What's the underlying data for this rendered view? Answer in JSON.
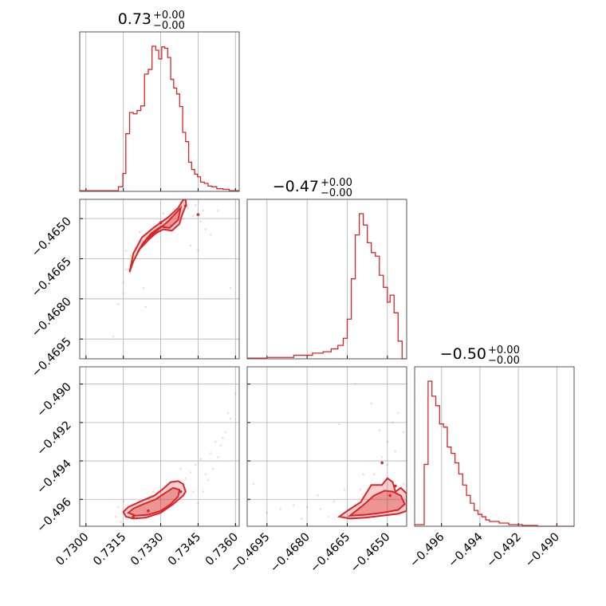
{
  "chart_data": {
    "type": "corner",
    "color": "#d62728",
    "parameters": [
      {
        "title": {
          "value": "0.73",
          "plus": "+0.00",
          "minus": "−0.00"
        },
        "range": [
          0.72975,
          0.73615
        ],
        "ticks": [
          0.73,
          0.7315,
          0.733,
          0.7345,
          0.736
        ],
        "tick_labels": [
          "0.7300",
          "0.7315",
          "0.7330",
          "0.7345",
          "0.7360"
        ]
      },
      {
        "title": {
          "value": "−0.47",
          "plus": "+0.00",
          "minus": "−0.00"
        },
        "range": [
          -0.47024,
          -0.46428
        ],
        "ticks": [
          -0.4695,
          -0.468,
          -0.4665,
          -0.465
        ],
        "tick_labels": [
          "−0.4695",
          "−0.4680",
          "−0.4665",
          "−0.4650"
        ]
      },
      {
        "title": {
          "value": "−0.50",
          "plus": "+0.00",
          "minus": "−0.00"
        },
        "range": [
          -0.4974,
          -0.4891
        ],
        "ticks": [
          -0.496,
          -0.494,
          -0.492,
          -0.49
        ],
        "tick_labels": [
          "−0.496",
          "−0.494",
          "−0.492",
          "−0.490"
        ]
      }
    ],
    "histograms": [
      {
        "param": 0,
        "edges": [
          0.72975,
          0.7313,
          0.73148,
          0.7316,
          0.73175,
          0.7319,
          0.73205,
          0.7322,
          0.73235,
          0.7325,
          0.73265,
          0.7328,
          0.73292,
          0.73304,
          0.73316,
          0.73328,
          0.7334,
          0.73352,
          0.73364,
          0.73376,
          0.73388,
          0.734,
          0.73412,
          0.73424,
          0.73436,
          0.73448,
          0.7346,
          0.73475,
          0.7349,
          0.73505,
          0.73525,
          0.7355,
          0.73575,
          0.73615
        ],
        "counts": [
          1,
          7,
          27,
          87,
          119,
          117,
          122,
          129,
          177,
          184,
          219,
          213,
          200,
          218,
          216,
          202,
          169,
          156,
          147,
          128,
          89,
          75,
          44,
          33,
          26,
          22,
          14,
          12,
          8,
          7,
          4,
          3,
          1
        ]
      },
      {
        "param": 1,
        "edges": [
          -0.47024,
          -0.4695,
          -0.4685,
          -0.4678,
          -0.4674,
          -0.4671,
          -0.46685,
          -0.46665,
          -0.4665,
          -0.46635,
          -0.4662,
          -0.46605,
          -0.4659,
          -0.46575,
          -0.4656,
          -0.46545,
          -0.4653,
          -0.46515,
          -0.465,
          -0.4649,
          -0.46475,
          -0.4646,
          -0.46445,
          -0.46428
        ],
        "counts": [
          1,
          2,
          5,
          8,
          10,
          14,
          19,
          29,
          56,
          113,
          175,
          205,
          189,
          164,
          150,
          145,
          118,
          101,
          80,
          90,
          65,
          25,
          0
        ]
      },
      {
        "param": 2,
        "edges": [
          -0.4974,
          -0.4969,
          -0.4967,
          -0.4965,
          -0.4963,
          -0.4961,
          -0.4959,
          -0.4957,
          -0.4955,
          -0.4953,
          -0.4951,
          -0.4949,
          -0.4947,
          -0.4945,
          -0.4943,
          -0.4941,
          -0.4939,
          -0.4937,
          -0.4935,
          -0.493,
          -0.4925,
          -0.4918,
          -0.491,
          -0.4891
        ],
        "counts": [
          2,
          78,
          183,
          164,
          152,
          129,
          125,
          100,
          92,
          80,
          66,
          52,
          39,
          29,
          20,
          15,
          12,
          8,
          6,
          4,
          2,
          1,
          0
        ]
      }
    ],
    "pairs": [
      {
        "x_param": 0,
        "y_param": 1,
        "contours_outer": [
          [
            [
              0.73175,
              -0.467
            ],
            [
              0.7319,
              -0.4663
            ],
            [
              0.73225,
              -0.4657
            ],
            [
              0.7327,
              -0.46535
            ],
            [
              0.7333,
              -0.46495
            ],
            [
              0.7337,
              -0.4646
            ],
            [
              0.7339,
              -0.4643
            ],
            [
              0.734,
              -0.46428
            ],
            [
              0.73402,
              -0.46448
            ],
            [
              0.73385,
              -0.46488
            ],
            [
              0.73375,
              -0.4652
            ],
            [
              0.73345,
              -0.46545
            ],
            [
              0.7331,
              -0.4654
            ],
            [
              0.7328,
              -0.46555
            ],
            [
              0.7325,
              -0.4658
            ],
            [
              0.73215,
              -0.46615
            ],
            [
              0.7319,
              -0.4666
            ],
            [
              0.73175,
              -0.467
            ]
          ]
        ],
        "contours_inner": [
          [
            [
              0.73208,
              -0.46625
            ],
            [
              0.7324,
              -0.4658
            ],
            [
              0.73285,
              -0.46545
            ],
            [
              0.7333,
              -0.4651
            ],
            [
              0.7336,
              -0.4648
            ],
            [
              0.7338,
              -0.4646
            ],
            [
              0.7337,
              -0.46505
            ],
            [
              0.73335,
              -0.46535
            ],
            [
              0.733,
              -0.4653
            ],
            [
              0.73262,
              -0.46555
            ],
            [
              0.7323,
              -0.4659
            ],
            [
              0.73208,
              -0.46625
            ]
          ]
        ],
        "scatter": [
          [
            0.7315,
            -0.4678
          ],
          [
            0.7315,
            -0.4674
          ],
          [
            0.7316,
            -0.4669
          ],
          [
            0.7317,
            -0.4669
          ],
          [
            0.7318,
            -0.4664
          ],
          [
            0.7324,
            -0.4659
          ],
          [
            0.7329,
            -0.46545
          ],
          [
            0.7334,
            -0.46525
          ],
          [
            0.7338,
            -0.4644
          ],
          [
            0.7341,
            -0.4646
          ],
          [
            0.7343,
            -0.4649
          ],
          [
            0.7346,
            -0.4651
          ],
          [
            0.7348,
            -0.4654
          ],
          [
            0.735,
            -0.4656
          ],
          [
            0.7345,
            -0.4662
          ],
          [
            0.7342,
            -0.466
          ],
          [
            0.7313,
            -0.4682
          ],
          [
            0.7324,
            -0.4683
          ],
          [
            0.7358,
            -0.4676
          ],
          [
            0.7331,
            -0.4648
          ],
          [
            0.7335,
            -0.46465
          ],
          [
            0.7344,
            -0.4645
          ],
          [
            0.7347,
            -0.4647
          ],
          [
            0.732,
            -0.4661
          ],
          [
            0.73215,
            -0.4655
          ],
          [
            0.7339,
            -0.465
          ],
          [
            0.7316,
            -0.4662
          ],
          [
            0.7353,
            -0.4647
          ],
          [
            0.7311,
            -0.4694
          ],
          [
            0.7323,
            -0.4676
          ]
        ],
        "dots": [
          [
            0.734,
            -0.46452
          ],
          [
            0.7345,
            -0.46485
          ],
          [
            0.733,
            -0.46515
          ]
        ]
      },
      {
        "x_param": 0,
        "y_param": 2,
        "contours_outer": [
          [
            [
              0.7315,
              -0.49665
            ],
            [
              0.7316,
              -0.4969
            ],
            [
              0.7319,
              -0.497
            ],
            [
              0.7324,
              -0.49695
            ],
            [
              0.733,
              -0.4967
            ],
            [
              0.7335,
              -0.49625
            ],
            [
              0.7339,
              -0.4958
            ],
            [
              0.734,
              -0.4956
            ],
            [
              0.7339,
              -0.4952
            ],
            [
              0.7337,
              -0.49505
            ],
            [
              0.7334,
              -0.4951
            ],
            [
              0.7331,
              -0.49545
            ],
            [
              0.73275,
              -0.4958
            ],
            [
              0.7322,
              -0.4961
            ],
            [
              0.7317,
              -0.4964
            ],
            [
              0.7315,
              -0.49665
            ]
          ]
        ],
        "contours_inner": [
          [
            [
              0.7317,
              -0.4967
            ],
            [
              0.732,
              -0.49685
            ],
            [
              0.7325,
              -0.4968
            ],
            [
              0.733,
              -0.4966
            ],
            [
              0.7334,
              -0.49625
            ],
            [
              0.7337,
              -0.49585
            ],
            [
              0.73375,
              -0.4955
            ],
            [
              0.7335,
              -0.4954
            ],
            [
              0.7332,
              -0.49565
            ],
            [
              0.7328,
              -0.496
            ],
            [
              0.7323,
              -0.49625
            ],
            [
              0.7319,
              -0.49648
            ],
            [
              0.7317,
              -0.4967
            ]
          ]
        ],
        "scatter": [
          [
            0.733,
            -0.4975
          ],
          [
            0.7345,
            -0.4962
          ],
          [
            0.7347,
            -0.4956
          ],
          [
            0.7349,
            -0.495
          ],
          [
            0.7351,
            -0.4944
          ],
          [
            0.7353,
            -0.4938
          ],
          [
            0.7354,
            -0.4932
          ],
          [
            0.7356,
            -0.4925
          ],
          [
            0.7358,
            -0.4918
          ],
          [
            0.736,
            -0.4905
          ],
          [
            0.7313,
            -0.4964
          ],
          [
            0.7315,
            -0.4961
          ],
          [
            0.7312,
            -0.4969
          ],
          [
            0.734,
            -0.4949
          ],
          [
            0.7342,
            -0.4946
          ],
          [
            0.7344,
            -0.4942
          ],
          [
            0.7336,
            -0.4954
          ],
          [
            0.7327,
            -0.4956
          ],
          [
            0.7348,
            -0.4947
          ],
          [
            0.7338,
            -0.4944
          ],
          [
            0.735,
            -0.4936
          ],
          [
            0.7346,
            -0.4939
          ],
          [
            0.7355,
            -0.4928
          ],
          [
            0.7314,
            -0.4972
          ],
          [
            0.732,
            -0.4974
          ],
          [
            0.7343,
            -0.4956
          ],
          [
            0.7357,
            -0.4915
          ],
          [
            0.7352,
            -0.493
          ]
        ],
        "dots": [
          [
            0.7338,
            -0.4956
          ],
          [
            0.7325,
            -0.4966
          ],
          [
            0.7319,
            -0.4969
          ]
        ]
      },
      {
        "x_param": 1,
        "y_param": 2,
        "contours_outer": [
          [
            [
              -0.4668,
              -0.4969
            ],
            [
              -0.4664,
              -0.497
            ],
            [
              -0.4658,
              -0.49695
            ],
            [
              -0.4652,
              -0.49685
            ],
            [
              -0.4646,
              -0.49675
            ],
            [
              -0.46428,
              -0.4966
            ],
            [
              -0.46428,
              -0.4957
            ],
            [
              -0.4645,
              -0.4954
            ],
            [
              -0.4647,
              -0.4956
            ],
            [
              -0.4648,
              -0.4951
            ],
            [
              -0.465,
              -0.4949
            ],
            [
              -0.4652,
              -0.49525
            ],
            [
              -0.4656,
              -0.49525
            ],
            [
              -0.466,
              -0.49615
            ],
            [
              -0.4665,
              -0.4966
            ],
            [
              -0.4668,
              -0.4969
            ]
          ]
        ],
        "contours_inner": [
          [
            [
              -0.4664,
              -0.49685
            ],
            [
              -0.4658,
              -0.4968
            ],
            [
              -0.4652,
              -0.4967
            ],
            [
              -0.4646,
              -0.49655
            ],
            [
              -0.46435,
              -0.49625
            ],
            [
              -0.4645,
              -0.4958
            ],
            [
              -0.4648,
              -0.4956
            ],
            [
              -0.4651,
              -0.49555
            ],
            [
              -0.4655,
              -0.4958
            ],
            [
              -0.4659,
              -0.4963
            ],
            [
              -0.4664,
              -0.49685
            ]
          ]
        ],
        "scatter": [
          [
            -0.4675,
            -0.4965
          ],
          [
            -0.468,
            -0.4964
          ],
          [
            -0.4685,
            -0.4963
          ],
          [
            -0.469,
            -0.4965
          ],
          [
            -0.467,
            -0.4961
          ],
          [
            -0.466,
            -0.4955
          ],
          [
            -0.4655,
            -0.4947
          ],
          [
            -0.4652,
            -0.4938
          ],
          [
            -0.465,
            -0.493
          ],
          [
            -0.4648,
            -0.492
          ],
          [
            -0.4646,
            -0.4915
          ],
          [
            -0.4644,
            -0.4925
          ],
          [
            -0.4656,
            -0.491
          ],
          [
            -0.4662,
            -0.49
          ],
          [
            -0.4668,
            -0.4921
          ],
          [
            -0.4676,
            -0.4958
          ],
          [
            -0.4682,
            -0.497
          ],
          [
            -0.4695,
            -0.4967
          ],
          [
            -0.465,
            -0.4942
          ],
          [
            -0.4647,
            -0.4935
          ],
          [
            -0.4653,
            -0.4924
          ],
          [
            -0.4659,
            -0.4947
          ],
          [
            -0.4644,
            -0.4952
          ],
          [
            -0.47,
            -0.4952
          ],
          [
            -0.4666,
            -0.4955
          ],
          [
            -0.4672,
            -0.4969
          ]
        ],
        "dots": [
          [
            -0.4652,
            -0.4941
          ],
          [
            -0.4647,
            -0.4953
          ],
          [
            -0.4649,
            -0.4958
          ]
        ]
      }
    ]
  }
}
